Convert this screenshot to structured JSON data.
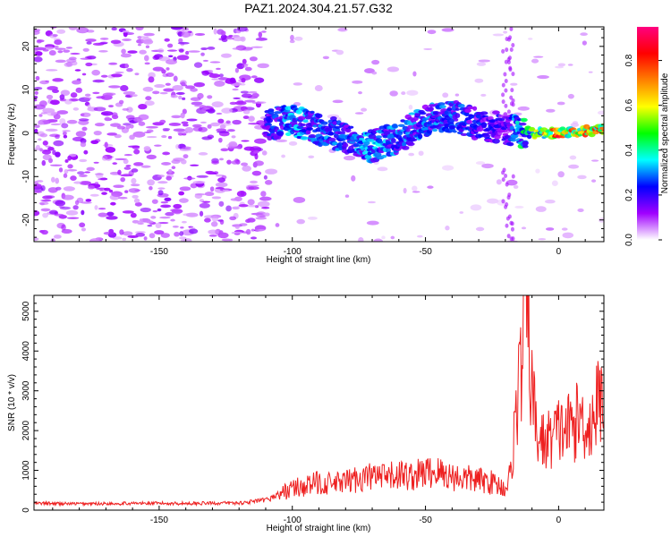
{
  "title": "PAZ1.2024.304.21.57.G32",
  "chart_data": [
    {
      "type": "heatmap",
      "xlabel": "Height of straight line (km)",
      "ylabel": "Frequency (Hz)",
      "xlim": [
        -197,
        17
      ],
      "ylim": [
        -25,
        24.5
      ],
      "x_ticks": [
        -150,
        -100,
        -50,
        0
      ],
      "y_ticks": [
        -20,
        -10,
        0,
        10,
        20
      ],
      "colorbar": {
        "label": "Normalized spectral amplitude",
        "range": [
          0,
          0.95
        ],
        "ticks": [
          0.0,
          0.2,
          0.4,
          0.6,
          0.8
        ],
        "colors": [
          "#ffffff",
          "#a000ff",
          "#0000ff",
          "#00ffff",
          "#00ff00",
          "#ffff00",
          "#ff8000",
          "#ff0000",
          "#ff0080"
        ]
      },
      "ridge": {
        "x": [
          -110,
          -100,
          -90,
          -80,
          -70,
          -60,
          -50,
          -40,
          -30,
          -20,
          -10,
          0,
          10,
          17
        ],
        "freq": [
          2,
          3,
          1,
          -1,
          -3,
          -1,
          3,
          4,
          2,
          1,
          0,
          0,
          0.5,
          1
        ],
        "amplitude": [
          0.25,
          0.35,
          0.3,
          0.3,
          0.35,
          0.3,
          0.3,
          0.3,
          0.25,
          0.2,
          0.55,
          0.8,
          0.75,
          0.8
        ]
      }
    },
    {
      "type": "line",
      "xlabel": "Height of straight line (km)",
      "ylabel": "SNR (10 * v/v)",
      "xlim": [
        -197,
        17
      ],
      "ylim": [
        0,
        5400
      ],
      "x_ticks": [
        -150,
        -100,
        -50,
        0
      ],
      "y_ticks": [
        0,
        1000,
        2000,
        3000,
        4000,
        5000
      ],
      "series": [
        {
          "color": "#ee2020",
          "x": [
            -197,
            -180,
            -160,
            -140,
            -120,
            -110,
            -105,
            -100,
            -95,
            -90,
            -85,
            -80,
            -75,
            -70,
            -65,
            -60,
            -55,
            -50,
            -45,
            -40,
            -35,
            -30,
            -25,
            -20,
            -18,
            -16,
            -14,
            -13,
            -12,
            -11,
            -10,
            -8,
            -5,
            0,
            5,
            8,
            10,
            12,
            14,
            17
          ],
          "y": [
            170,
            160,
            170,
            170,
            180,
            250,
            400,
            550,
            600,
            700,
            650,
            700,
            800,
            850,
            800,
            900,
            850,
            950,
            950,
            850,
            800,
            750,
            700,
            550,
            900,
            2500,
            3600,
            4800,
            5300,
            4200,
            3000,
            1800,
            1700,
            2000,
            2100,
            2300,
            2200,
            2100,
            2600,
            2900
          ]
        }
      ]
    }
  ]
}
